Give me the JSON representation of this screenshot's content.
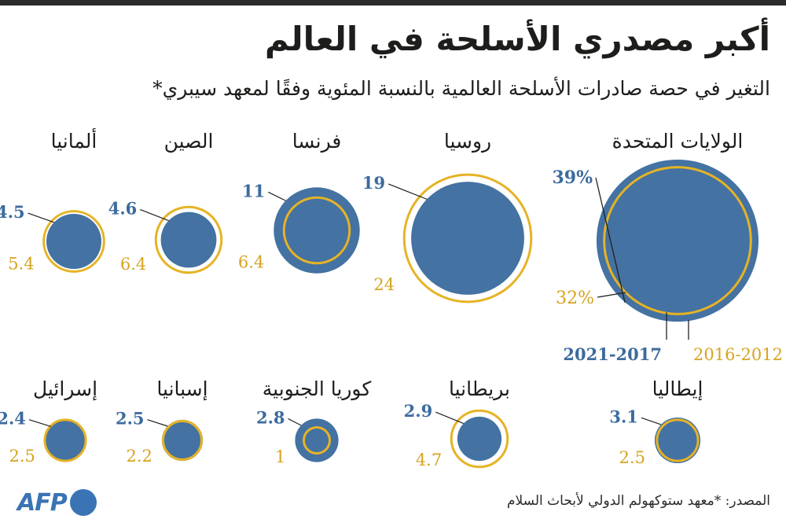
{
  "header": {
    "title": "أكبر مصدري الأسلحة في العالم",
    "subtitle": "التغير في حصة صادرات الأسلحة العالمية بالنسبة المئوية وفقًا لمعهد سيبري*"
  },
  "colors": {
    "recent": "#4472a2",
    "earlier": "#e6b325",
    "recent_text": "#3c6b9e",
    "earlier_text": "#d6a421",
    "topbar": "#2b2b2b"
  },
  "chart_data": {
    "type": "bubble",
    "periods": {
      "recent": "2021-2017",
      "earlier": "2016-2012"
    },
    "countries": [
      {
        "name": "الولايات المتحدة",
        "recent": 39,
        "earlier": 32,
        "recent_label": "39%",
        "earlier_label": "32%"
      },
      {
        "name": "روسيا",
        "recent": 19,
        "earlier": 24,
        "recent_label": "19",
        "earlier_label": "24"
      },
      {
        "name": "فرنسا",
        "recent": 11,
        "earlier": 6.4,
        "recent_label": "11",
        "earlier_label": "6.4"
      },
      {
        "name": "الصين",
        "recent": 4.6,
        "earlier": 6.4,
        "recent_label": "4.6",
        "earlier_label": "6.4"
      },
      {
        "name": "ألمانيا",
        "recent": 4.5,
        "earlier": 5.4,
        "recent_label": "4.5",
        "earlier_label": "5.4"
      },
      {
        "name": "إيطاليا",
        "recent": 3.1,
        "earlier": 2.5,
        "recent_label": "3.1",
        "earlier_label": "2.5"
      },
      {
        "name": "بريطانيا",
        "recent": 2.9,
        "earlier": 4.7,
        "recent_label": "2.9",
        "earlier_label": "4.7"
      },
      {
        "name": "كوريا الجنوبية",
        "recent": 2.8,
        "earlier": 1,
        "recent_label": "2.8",
        "earlier_label": "1"
      },
      {
        "name": "إسبانيا",
        "recent": 2.5,
        "earlier": 2.2,
        "recent_label": "2.5",
        "earlier_label": "2.2"
      },
      {
        "name": "إسرائيل",
        "recent": 2.4,
        "earlier": 2.5,
        "recent_label": "2.4",
        "earlier_label": "2.5"
      }
    ]
  },
  "footer": {
    "source": "المصدر: *معهد ستوكهولم الدولي لأبحاث السلام",
    "logo_text": "AFP"
  }
}
